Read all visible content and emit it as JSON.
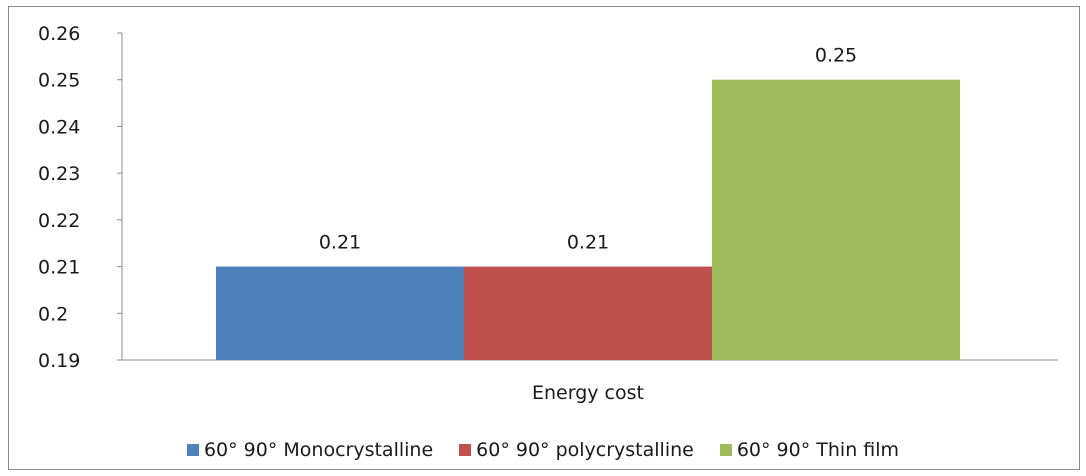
{
  "chart_data": {
    "type": "bar",
    "categories": [
      "Energy cost"
    ],
    "series": [
      {
        "name": "60°  90° Monocrystalline",
        "values": [
          0.21
        ],
        "label": "0.21",
        "color": "#4f81bd"
      },
      {
        "name": "60°  90° polycrystalline",
        "values": [
          0.21
        ],
        "label": "0.21",
        "color": "#c0504d"
      },
      {
        "name": "60°  90° Thin film",
        "values": [
          0.25
        ],
        "label": "0.25",
        "color": "#9bbb59"
      }
    ],
    "yticks": [
      "0.19",
      "0.2",
      "0.21",
      "0.22",
      "0.23",
      "0.24",
      "0.25",
      "0.26"
    ],
    "ylim": [
      0.19,
      0.26
    ],
    "title": "",
    "xlabel": "",
    "ylabel": "",
    "grid": false,
    "legend_position": "bottom"
  }
}
